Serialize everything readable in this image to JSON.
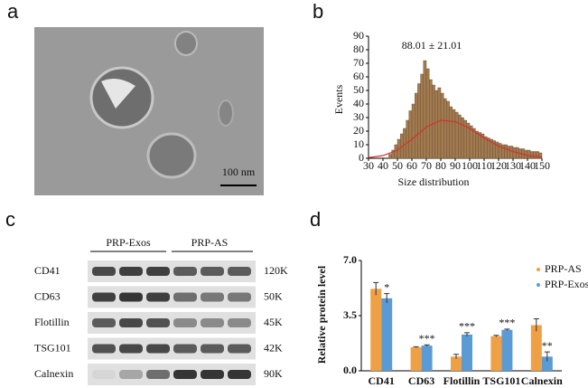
{
  "panel_labels": [
    "a",
    "b",
    "c",
    "d"
  ],
  "tem": {
    "scale_bar": "100 nm"
  },
  "blot": {
    "groups": [
      "PRP-Exos",
      "PRP-AS"
    ],
    "rows": [
      {
        "protein": "CD41",
        "size": "120K"
      },
      {
        "protein": "CD63",
        "size": "50K"
      },
      {
        "protein": "Flotillin",
        "size": "45K"
      },
      {
        "protein": "TSG101",
        "size": "42K"
      },
      {
        "protein": "Calnexin",
        "size": "90K"
      }
    ]
  },
  "chart_data": [
    {
      "type": "histogram",
      "annotation": "88.01 ± 21.01",
      "x_label": "Size distribution",
      "y_label": "Events",
      "bins": [
        44,
        46,
        48,
        50,
        52,
        54,
        56,
        58,
        60,
        62,
        64,
        66,
        68,
        70,
        72,
        74,
        76,
        78,
        80,
        82,
        84,
        86,
        88,
        90,
        92,
        94,
        96,
        98,
        100,
        102,
        104,
        106,
        108,
        110,
        112,
        114,
        116,
        118,
        120,
        122,
        124,
        126,
        128,
        130,
        132,
        134,
        136,
        138,
        140,
        142,
        144,
        146,
        148,
        150
      ],
      "values": [
        3,
        6,
        10,
        14,
        18,
        22,
        28,
        35,
        40,
        48,
        55,
        62,
        72,
        66,
        58,
        54,
        50,
        52,
        48,
        44,
        42,
        38,
        36,
        34,
        32,
        30,
        28,
        26,
        24,
        22,
        20,
        19,
        18,
        16,
        15,
        14,
        13,
        12,
        11,
        10,
        10,
        9,
        9,
        8,
        8,
        7,
        7,
        6,
        6,
        5,
        5,
        5,
        4
      ],
      "color": "#6b4a2b",
      "fit": {
        "color": "#d9302c",
        "x": [
          30,
          40,
          50,
          60,
          70,
          80,
          90,
          100,
          110,
          120,
          130,
          140,
          150
        ],
        "values": [
          0.5,
          2,
          6,
          14,
          23,
          28,
          27,
          22,
          15,
          9,
          5,
          2,
          1
        ]
      },
      "xlim": [
        30,
        150
      ],
      "xticks": [
        30,
        40,
        50,
        60,
        70,
        80,
        90,
        100,
        110,
        120,
        130,
        140,
        150
      ],
      "ylim": [
        0,
        90
      ],
      "yticks": [
        0,
        10,
        20,
        30,
        40,
        50,
        60,
        70,
        80,
        90
      ]
    },
    {
      "type": "bar",
      "y_label": "Relative protein level",
      "categories": [
        "CD41",
        "CD63",
        "Flotillin",
        "TSG101",
        "Calnexin"
      ],
      "series": [
        {
          "name": "PRP-AS",
          "color": "#f0a044",
          "values": [
            5.2,
            1.5,
            0.9,
            2.2,
            2.9
          ],
          "errors": [
            0.4,
            0.03,
            0.15,
            0.05,
            0.4
          ]
        },
        {
          "name": "PRP-Exos",
          "color": "#5b9bd5",
          "values": [
            4.6,
            1.6,
            2.3,
            2.6,
            0.9
          ],
          "errors": [
            0.3,
            0.05,
            0.12,
            0.05,
            0.3
          ]
        }
      ],
      "significance": [
        "*",
        "***",
        "***",
        "***",
        "**"
      ],
      "ylim": [
        0,
        7
      ],
      "yticks": [
        {
          "value": 0,
          "label": "0.0"
        },
        {
          "value": 3.5,
          "label": "3.5"
        },
        {
          "value": 7,
          "label": "7.0"
        }
      ],
      "legend": "top-right"
    }
  ]
}
